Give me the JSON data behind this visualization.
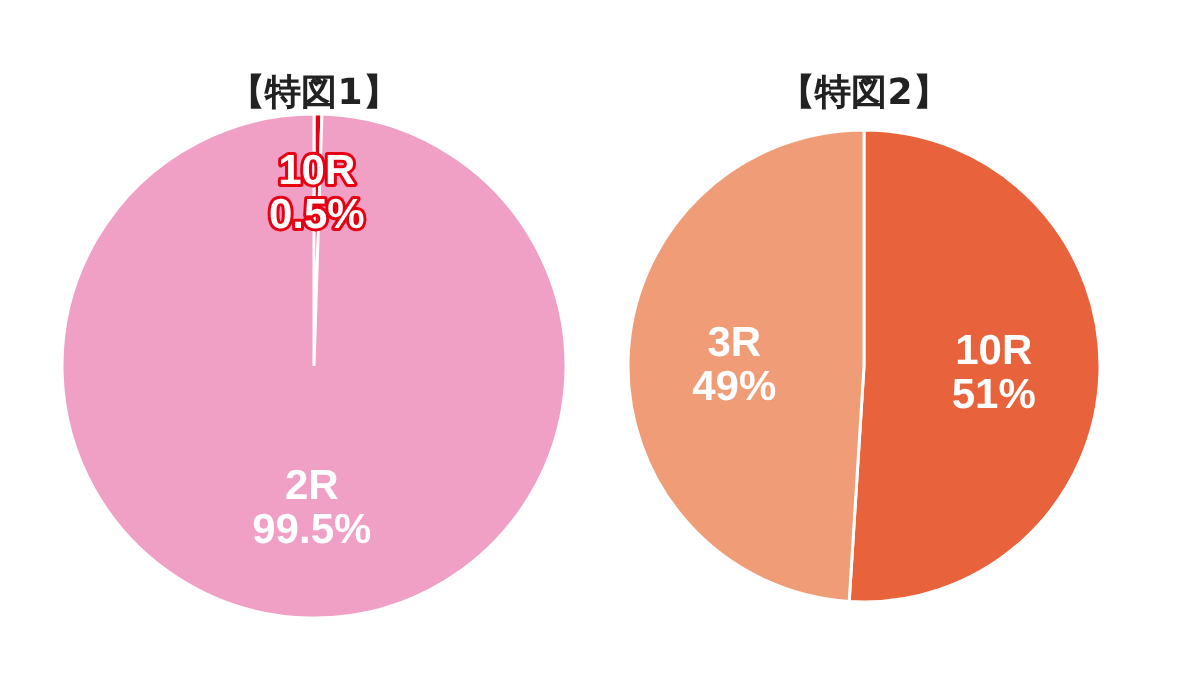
{
  "chart_data": [
    {
      "type": "pie",
      "title": "【特図1】",
      "categories": [
        "10R",
        "2R"
      ],
      "values": [
        0.5,
        99.5
      ],
      "colors": [
        "#e60012",
        "#f09fc5"
      ],
      "value_labels": [
        "0.5%",
        "99.5%"
      ]
    },
    {
      "type": "pie",
      "title": "【特図2】",
      "categories": [
        "10R",
        "3R"
      ],
      "values": [
        51,
        49
      ],
      "colors": [
        "#e8633b",
        "#f09c76"
      ],
      "value_labels": [
        "51%",
        "49%"
      ]
    }
  ]
}
